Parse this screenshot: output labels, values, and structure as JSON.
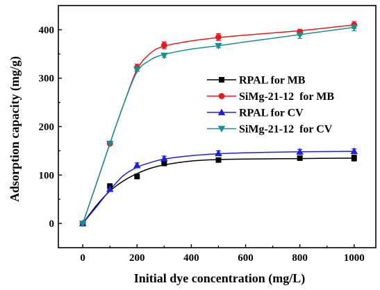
{
  "chart_data": {
    "type": "line",
    "xlabel": "Initial dye concentration (mg/L)",
    "ylabel": "Adsorption capacity (mg/g)",
    "xlim": [
      -90,
      1080
    ],
    "ylim": [
      -50,
      450
    ],
    "xticks": [
      0,
      200,
      400,
      600,
      800,
      1000
    ],
    "yticks": [
      0,
      100,
      200,
      300,
      400
    ],
    "x": [
      0,
      100,
      200,
      300,
      500,
      800,
      1000
    ],
    "legend_position": "center-right",
    "grid": false,
    "series": [
      {
        "name": "RPAL for MB",
        "color": "#000000",
        "marker": "square",
        "values": [
          0,
          77,
          97,
          124,
          131,
          135,
          135
        ],
        "errors": [
          0,
          5,
          3,
          3,
          4,
          4,
          6
        ],
        "fit": [
          [
            0,
            0
          ],
          [
            50,
            37
          ],
          [
            100,
            67
          ],
          [
            150,
            88
          ],
          [
            200,
            103
          ],
          [
            250,
            114
          ],
          [
            300,
            121
          ],
          [
            400,
            129
          ],
          [
            500,
            132
          ],
          [
            600,
            133
          ],
          [
            800,
            134
          ],
          [
            1000,
            135
          ]
        ]
      },
      {
        "name": "SiMg-21-12  for MB",
        "color": "#e41a1c",
        "marker": "circle",
        "values": [
          0,
          165,
          322,
          368,
          385,
          395,
          410
        ],
        "errors": [
          0,
          3,
          7,
          7,
          7,
          6,
          7
        ],
        "fit": [
          [
            0,
            0
          ],
          [
            50,
            82
          ],
          [
            100,
            165
          ],
          [
            150,
            245
          ],
          [
            200,
            318
          ],
          [
            250,
            352
          ],
          [
            300,
            366
          ],
          [
            400,
            377
          ],
          [
            500,
            384
          ],
          [
            600,
            389
          ],
          [
            800,
            398
          ],
          [
            1000,
            410
          ]
        ]
      },
      {
        "name": "RPAL for CV",
        "color": "#1f1fdc",
        "marker": "triangle-up",
        "values": [
          0,
          71,
          120,
          134,
          145,
          148,
          149
        ],
        "errors": [
          0,
          4,
          5,
          5,
          5,
          5,
          5
        ],
        "fit": [
          [
            0,
            0
          ],
          [
            50,
            34
          ],
          [
            100,
            69
          ],
          [
            150,
            99
          ],
          [
            200,
            116
          ],
          [
            250,
            126
          ],
          [
            300,
            133
          ],
          [
            400,
            140
          ],
          [
            500,
            144
          ],
          [
            600,
            146
          ],
          [
            800,
            148
          ],
          [
            1000,
            149
          ]
        ]
      },
      {
        "name": "SiMg-21-12  for CV",
        "color": "#1a8f8a",
        "marker": "triangle-down",
        "values": [
          0,
          165,
          318,
          347,
          367,
          389,
          405
        ],
        "errors": [
          0,
          3,
          4,
          4,
          4,
          7,
          7
        ],
        "fit": [
          [
            0,
            0
          ],
          [
            50,
            82
          ],
          [
            100,
            165
          ],
          [
            150,
            245
          ],
          [
            200,
            313
          ],
          [
            250,
            338
          ],
          [
            300,
            349
          ],
          [
            400,
            360
          ],
          [
            500,
            367
          ],
          [
            600,
            375
          ],
          [
            800,
            390
          ],
          [
            1000,
            405
          ]
        ]
      }
    ]
  }
}
